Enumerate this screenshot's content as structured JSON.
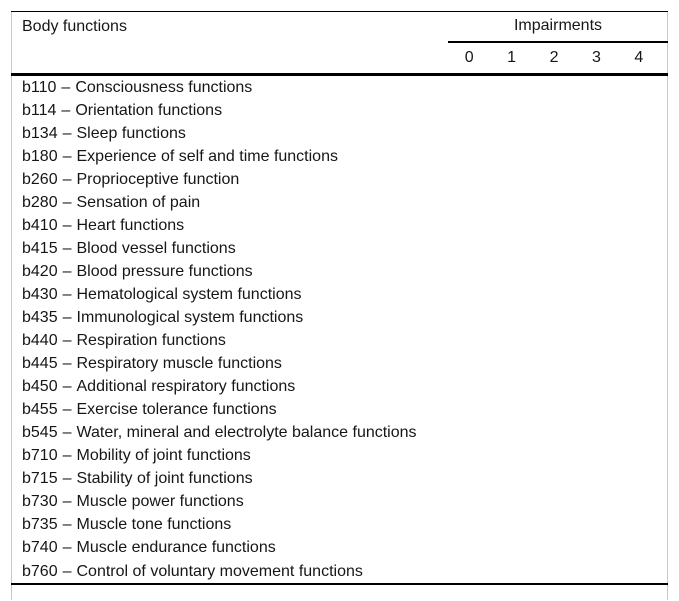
{
  "header": {
    "body_functions_label": "Body functions",
    "impairments_label": "Impairments",
    "levels": [
      "0",
      "1",
      "2",
      "3",
      "4"
    ]
  },
  "separator": "–",
  "rows": [
    {
      "code": "b110",
      "name": "Consciousness functions"
    },
    {
      "code": "b114",
      "name": "Orientation functions"
    },
    {
      "code": "b134",
      "name": "Sleep functions"
    },
    {
      "code": "b180",
      "name": "Experience of self and time functions"
    },
    {
      "code": "b260",
      "name": "Proprioceptive function"
    },
    {
      "code": "b280",
      "name": "Sensation of pain"
    },
    {
      "code": "b410",
      "name": "Heart functions"
    },
    {
      "code": "b415",
      "name": "Blood vessel functions"
    },
    {
      "code": "b420",
      "name": "Blood pressure functions"
    },
    {
      "code": "b430",
      "name": "Hematological system functions"
    },
    {
      "code": "b435",
      "name": "Immunological system functions"
    },
    {
      "code": "b440",
      "name": "Respiration functions"
    },
    {
      "code": "b445",
      "name": "Respiratory muscle functions"
    },
    {
      "code": "b450",
      "name": "Additional respiratory functions"
    },
    {
      "code": "b455",
      "name": "Exercise tolerance functions"
    },
    {
      "code": "b545",
      "name": "Water, mineral and electrolyte balance functions"
    },
    {
      "code": "b710",
      "name": "Mobility of joint functions"
    },
    {
      "code": "b715",
      "name": "Stability of joint functions"
    },
    {
      "code": "b730",
      "name": "Muscle power functions"
    },
    {
      "code": "b735",
      "name": "Muscle tone functions"
    },
    {
      "code": "b740",
      "name": "Muscle endurance functions"
    },
    {
      "code": "b760",
      "name": "Control of voluntary movement functions"
    }
  ]
}
